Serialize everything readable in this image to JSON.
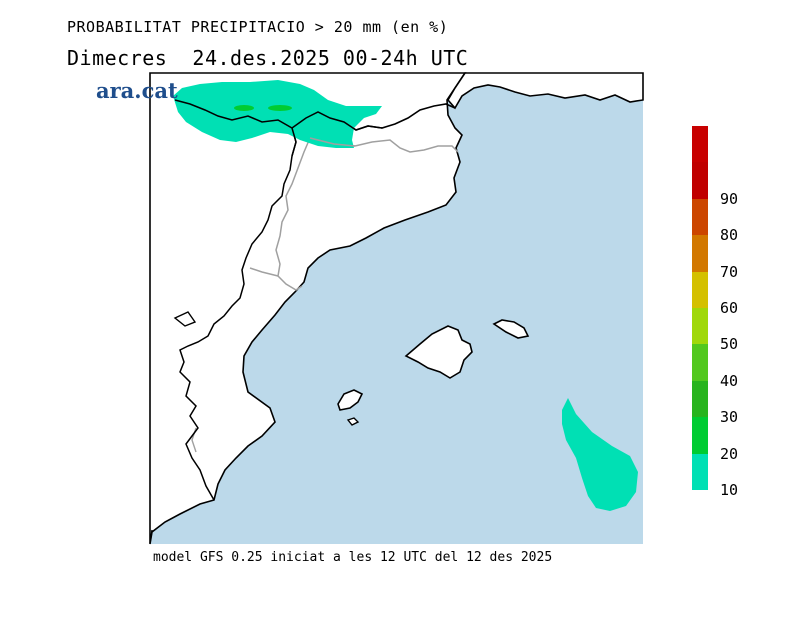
{
  "header": {
    "title": "PROBABILITAT PRECIPITACIO > 20 mm (en %)",
    "subtitle": "Dimecres  24.des.2025 00-24h UTC"
  },
  "brand": {
    "text": "ara.cat"
  },
  "footer": {
    "text": "model GFS 0.25 iniciat a les 12 UTC del 12 des 2025"
  },
  "legend": {
    "unit": "%",
    "labels": [
      "10",
      "20",
      "30",
      "40",
      "50",
      "60",
      "70",
      "80",
      "90"
    ],
    "colors": [
      "#00e0b4",
      "#00cc32",
      "#28b41e",
      "#52c81e",
      "#a0d80a",
      "#d4c000",
      "#d27800",
      "#cc4600",
      "#c00000",
      "#c80000"
    ]
  },
  "map_colors": {
    "sea": "#bcd9ea",
    "land": "#ffffff",
    "coast": "#000000",
    "border": "#a0a0a0",
    "prob_10_20": "#00e0b4",
    "prob_20_30": "#00cc32"
  }
}
